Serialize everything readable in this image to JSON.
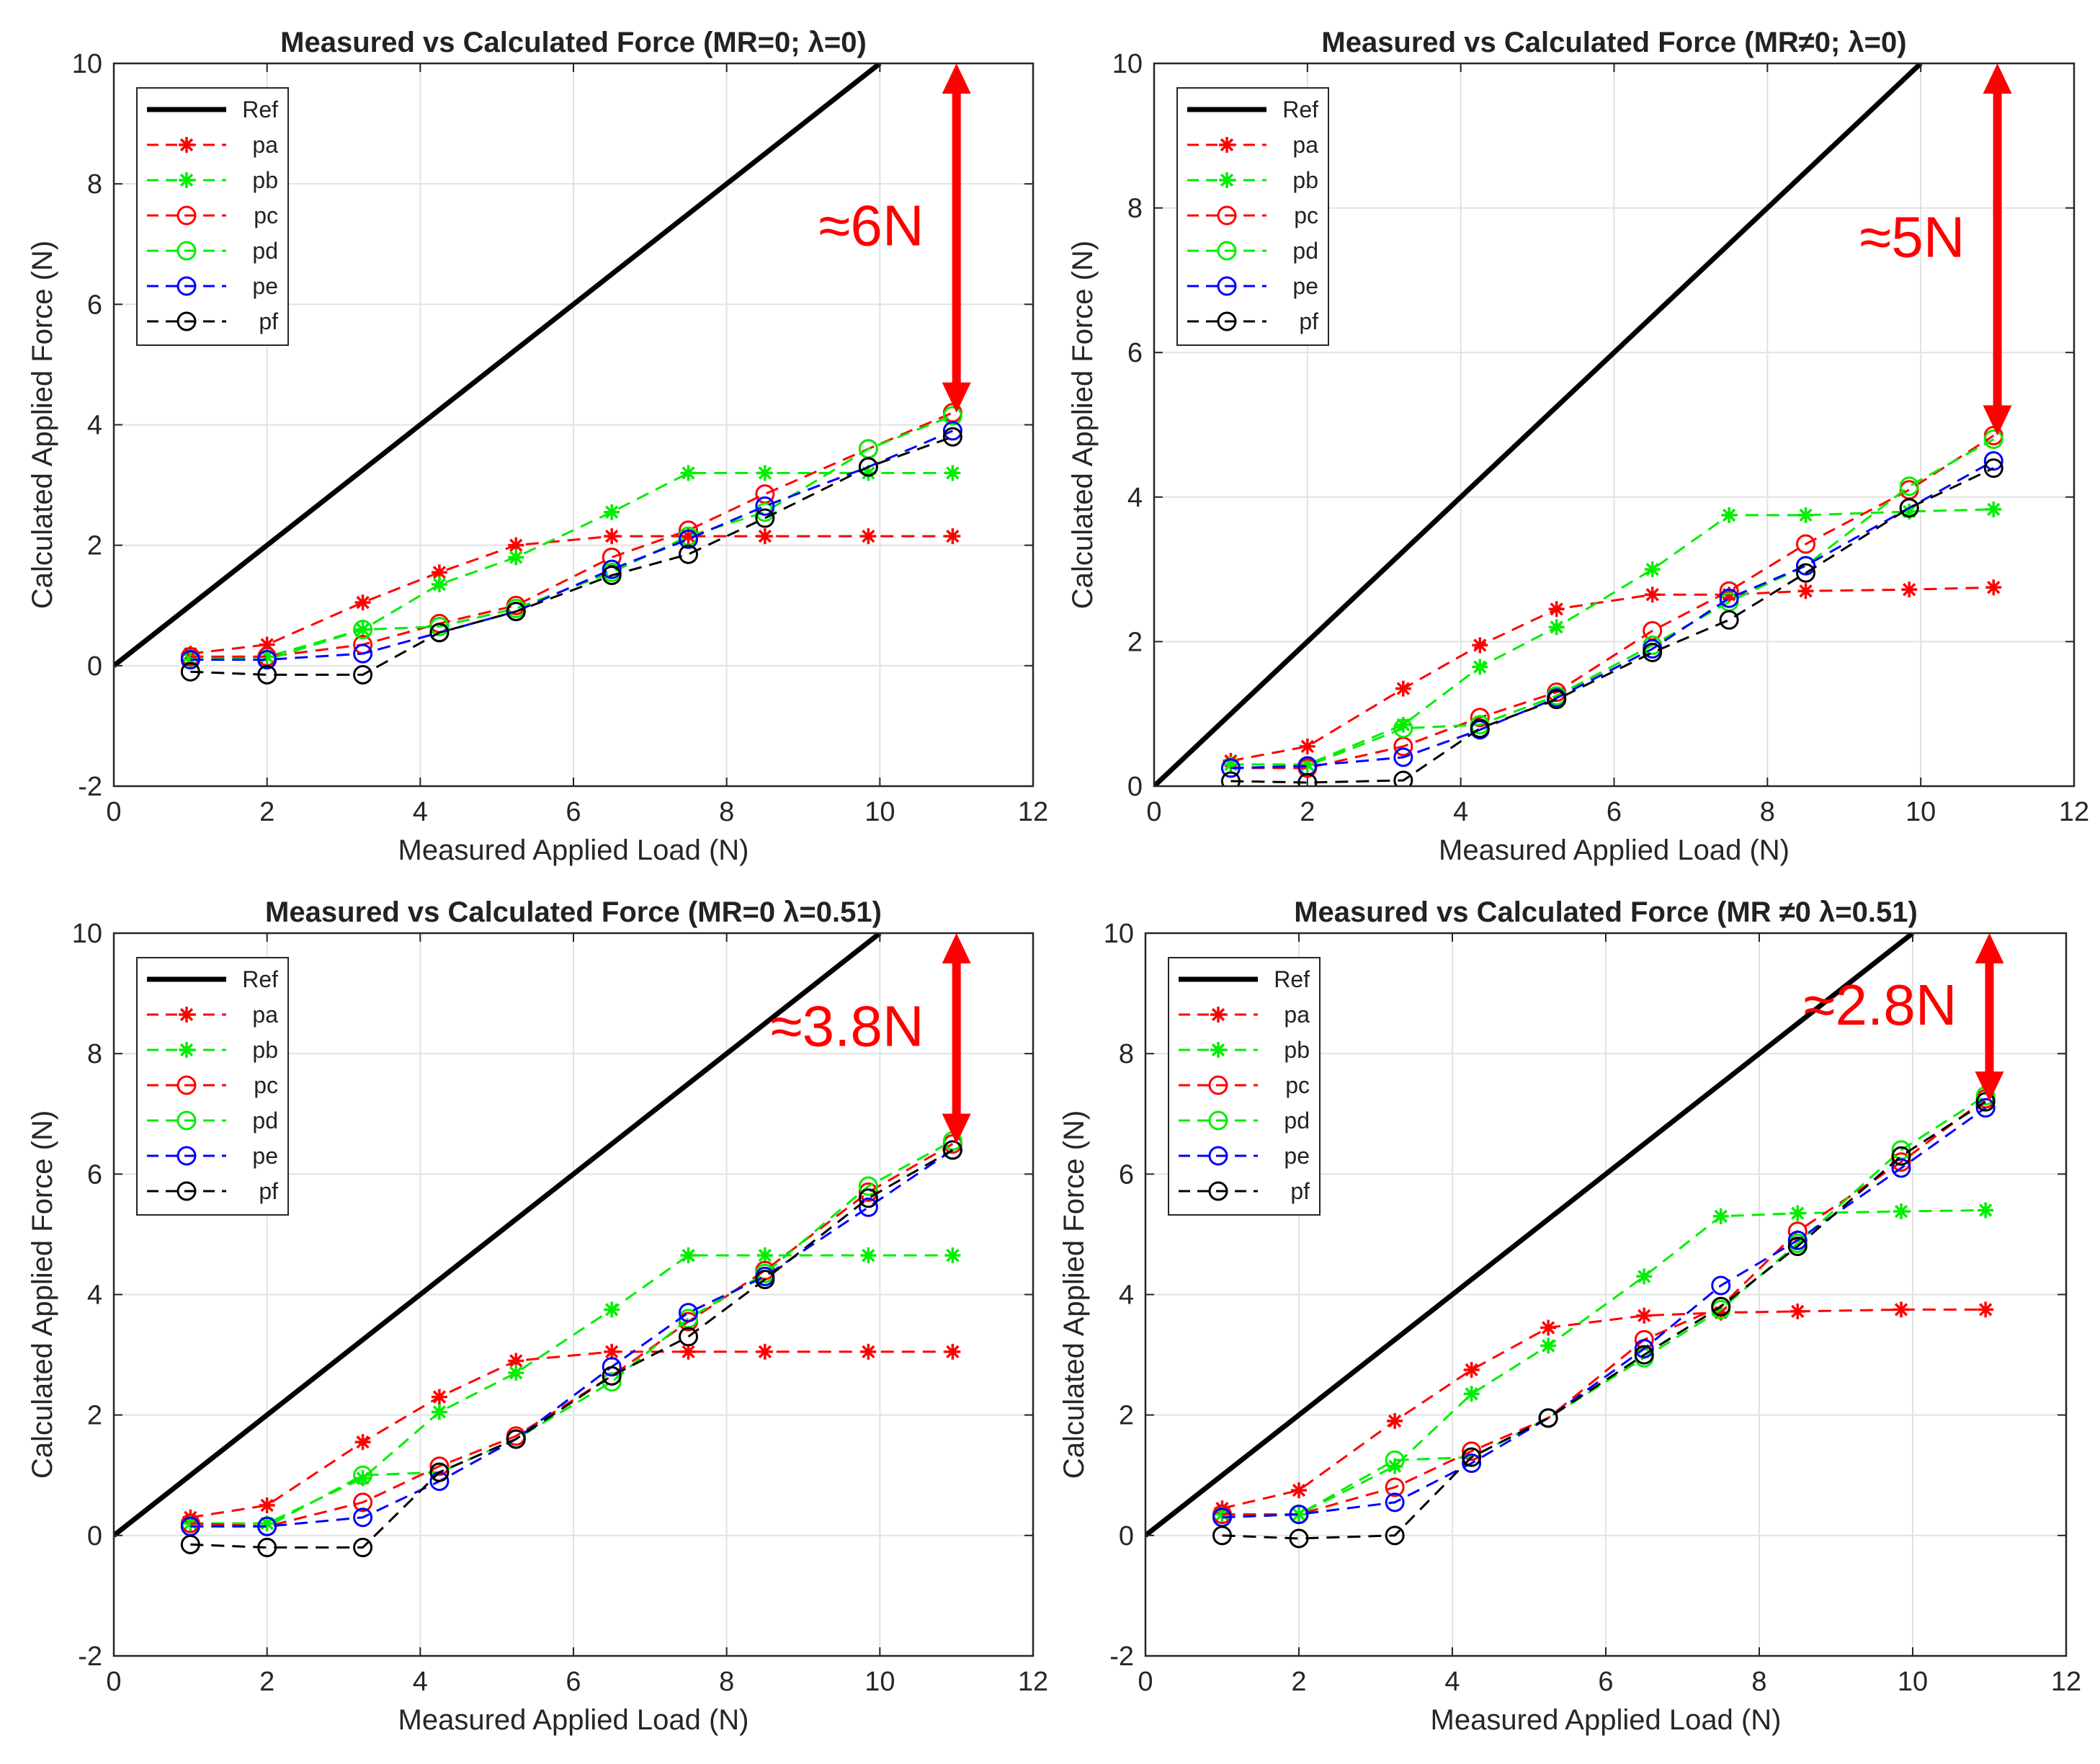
{
  "chart_data": [
    {
      "type": "line",
      "title": "Measured vs Calculated Force (MR=0; λ=0)",
      "xlabel": "Measured Applied Load (N)",
      "ylabel": "Calculated Applied Force (N)",
      "xlim": [
        0,
        12
      ],
      "ylim": [
        -2,
        10
      ],
      "xticks": [
        "0",
        "2",
        "4",
        "6",
        "8",
        "10",
        "12"
      ],
      "yticks": [
        "-2",
        "0",
        "2",
        "4",
        "6",
        "8",
        "10"
      ],
      "grid": true,
      "legend": "top-left",
      "annotation": {
        "text": "≈6N",
        "arrow_x": 11,
        "arrow_from": 10,
        "arrow_to": 4.2
      },
      "ref": {
        "name": "Ref",
        "x": [
          0,
          10
        ],
        "values": [
          0,
          10
        ]
      },
      "x": [
        1,
        2,
        3.25,
        4.25,
        5.25,
        6.5,
        7.5,
        8.5,
        9.85,
        10.95
      ],
      "series": [
        {
          "name": "pa",
          "values": [
            0.2,
            0.35,
            1.05,
            1.55,
            2.0,
            2.15,
            2.15,
            2.15,
            2.15,
            2.15
          ]
        },
        {
          "name": "pb",
          "values": [
            0.1,
            0.15,
            0.6,
            1.35,
            1.8,
            2.55,
            3.2,
            3.2,
            3.2,
            3.2
          ]
        },
        {
          "name": "pc",
          "values": [
            0.15,
            0.15,
            0.35,
            0.7,
            1.0,
            1.8,
            2.25,
            2.85,
            3.6,
            4.2
          ]
        },
        {
          "name": "pd",
          "values": [
            0.1,
            0.1,
            0.6,
            0.65,
            0.95,
            1.55,
            2.15,
            2.55,
            3.6,
            4.15
          ]
        },
        {
          "name": "pe",
          "values": [
            0.1,
            0.1,
            0.2,
            0.55,
            0.9,
            1.6,
            2.1,
            2.65,
            3.3,
            3.9
          ]
        },
        {
          "name": "pf",
          "values": [
            -0.1,
            -0.15,
            -0.15,
            0.55,
            0.9,
            1.5,
            1.85,
            2.45,
            3.3,
            3.8
          ]
        }
      ]
    },
    {
      "type": "line",
      "title": "Measured vs Calculated Force (MR≠0; λ=0)",
      "xlabel": "Measured Applied Load (N)",
      "ylabel": "Calculated Applied Force (N)",
      "xlim": [
        0,
        12
      ],
      "ylim": [
        0,
        10
      ],
      "xticks": [
        "0",
        "2",
        "4",
        "6",
        "8",
        "10",
        "12"
      ],
      "yticks": [
        "0",
        "2",
        "4",
        "6",
        "8",
        "10"
      ],
      "grid": true,
      "legend": "top-left",
      "annotation": {
        "text": "≈5N",
        "arrow_x": 11,
        "arrow_from": 10,
        "arrow_to": 4.85
      },
      "ref": {
        "name": "Ref",
        "x": [
          0,
          10
        ],
        "values": [
          0,
          10
        ]
      },
      "x": [
        1,
        2,
        3.25,
        4.25,
        5.25,
        6.5,
        7.5,
        8.5,
        9.85,
        10.95
      ],
      "series": [
        {
          "name": "pa",
          "values": [
            0.35,
            0.55,
            1.35,
            1.95,
            2.45,
            2.65,
            2.65,
            2.7,
            2.72,
            2.75
          ]
        },
        {
          "name": "pb",
          "values": [
            0.3,
            0.3,
            0.85,
            1.65,
            2.2,
            3.0,
            3.75,
            3.75,
            3.8,
            3.83
          ]
        },
        {
          "name": "pc",
          "values": [
            0.25,
            0.25,
            0.55,
            0.95,
            1.3,
            2.15,
            2.7,
            3.35,
            4.1,
            4.85
          ]
        },
        {
          "name": "pd",
          "values": [
            0.25,
            0.28,
            0.8,
            0.85,
            1.25,
            1.95,
            2.55,
            3.05,
            4.15,
            4.8
          ]
        },
        {
          "name": "pe",
          "values": [
            0.25,
            0.28,
            0.4,
            0.78,
            1.22,
            1.9,
            2.6,
            3.05,
            3.85,
            4.5
          ]
        },
        {
          "name": "pf",
          "values": [
            0.07,
            0.05,
            0.08,
            0.8,
            1.2,
            1.85,
            2.3,
            2.95,
            3.85,
            4.4
          ]
        }
      ]
    },
    {
      "type": "line",
      "title": "Measured vs Calculated Force (MR=0 λ=0.51)",
      "xlabel": "Measured Applied Load (N)",
      "ylabel": "Calculated Applied Force (N)",
      "xlim": [
        0,
        12
      ],
      "ylim": [
        -2,
        10
      ],
      "xticks": [
        "0",
        "2",
        "4",
        "6",
        "8",
        "10",
        "12"
      ],
      "yticks": [
        "-2",
        "0",
        "2",
        "4",
        "6",
        "8",
        "10"
      ],
      "grid": true,
      "legend": "top-left",
      "annotation": {
        "text": "≈3.8N",
        "arrow_x": 11,
        "arrow_from": 10,
        "arrow_to": 6.5
      },
      "ref": {
        "name": "Ref",
        "x": [
          0,
          10
        ],
        "values": [
          0,
          10
        ]
      },
      "x": [
        1,
        2,
        3.25,
        4.25,
        5.25,
        6.5,
        7.5,
        8.5,
        9.85,
        10.95
      ],
      "series": [
        {
          "name": "pa",
          "values": [
            0.3,
            0.5,
            1.55,
            2.3,
            2.9,
            3.05,
            3.05,
            3.05,
            3.05,
            3.05
          ]
        },
        {
          "name": "pb",
          "values": [
            0.2,
            0.2,
            0.95,
            2.05,
            2.7,
            3.75,
            4.65,
            4.65,
            4.65,
            4.65
          ]
        },
        {
          "name": "pc",
          "values": [
            0.2,
            0.15,
            0.55,
            1.15,
            1.65,
            2.65,
            3.55,
            4.4,
            5.7,
            6.5
          ]
        },
        {
          "name": "pd",
          "values": [
            0.15,
            0.15,
            1.0,
            1.05,
            1.6,
            2.55,
            3.6,
            4.35,
            5.8,
            6.55
          ]
        },
        {
          "name": "pe",
          "values": [
            0.15,
            0.15,
            0.3,
            0.9,
            1.6,
            2.8,
            3.7,
            4.3,
            5.45,
            6.4
          ]
        },
        {
          "name": "pf",
          "values": [
            -0.15,
            -0.2,
            -0.2,
            1.05,
            1.6,
            2.65,
            3.3,
            4.25,
            5.6,
            6.4
          ]
        }
      ]
    },
    {
      "type": "line",
      "title": "Measured vs Calculated Force (MR ≠0 λ=0.51)",
      "xlabel": "Measured Applied Load (N)",
      "ylabel": "Calculated Applied Force (N)",
      "xlim": [
        0,
        12
      ],
      "ylim": [
        -2,
        10
      ],
      "xticks": [
        "0",
        "2",
        "4",
        "6",
        "8",
        "10",
        "12"
      ],
      "yticks": [
        "-2",
        "0",
        "2",
        "4",
        "6",
        "8",
        "10"
      ],
      "grid": true,
      "legend": "top-left",
      "annotation": {
        "text": "≈2.8N",
        "arrow_x": 11,
        "arrow_from": 10,
        "arrow_to": 7.2
      },
      "ref": {
        "name": "Ref",
        "x": [
          0,
          10
        ],
        "values": [
          0,
          10
        ]
      },
      "x": [
        1,
        2,
        3.25,
        4.25,
        5.25,
        6.5,
        7.5,
        8.5,
        9.85,
        10.95
      ],
      "series": [
        {
          "name": "pa",
          "values": [
            0.45,
            0.75,
            1.9,
            2.75,
            3.45,
            3.65,
            3.7,
            3.72,
            3.75,
            3.75
          ]
        },
        {
          "name": "pb",
          "values": [
            0.35,
            0.35,
            1.15,
            2.35,
            3.15,
            4.3,
            5.3,
            5.35,
            5.38,
            5.4
          ]
        },
        {
          "name": "pc",
          "values": [
            0.35,
            0.35,
            0.8,
            1.4,
            1.95,
            3.25,
            3.8,
            5.05,
            6.2,
            7.25
          ]
        },
        {
          "name": "pd",
          "values": [
            0.3,
            0.35,
            1.25,
            1.3,
            1.95,
            2.95,
            3.75,
            4.85,
            6.4,
            7.3
          ]
        },
        {
          "name": "pe",
          "values": [
            0.3,
            0.35,
            0.55,
            1.2,
            1.95,
            3.1,
            4.15,
            4.9,
            6.1,
            7.1
          ]
        },
        {
          "name": "pf",
          "values": [
            0.0,
            -0.05,
            0.0,
            1.3,
            1.95,
            3.0,
            3.8,
            4.8,
            6.3,
            7.2
          ]
        }
      ]
    }
  ],
  "series_styles": {
    "pa": {
      "color": "#ff0000",
      "marker": "star"
    },
    "pb": {
      "color": "#00ee00",
      "marker": "star"
    },
    "pc": {
      "color": "#ff0000",
      "marker": "circle"
    },
    "pd": {
      "color": "#00ee00",
      "marker": "circle"
    },
    "pe": {
      "color": "#0000ff",
      "marker": "circle"
    },
    "pf": {
      "color": "#000000",
      "marker": "circle"
    }
  },
  "annotation_color": "#ff0000"
}
